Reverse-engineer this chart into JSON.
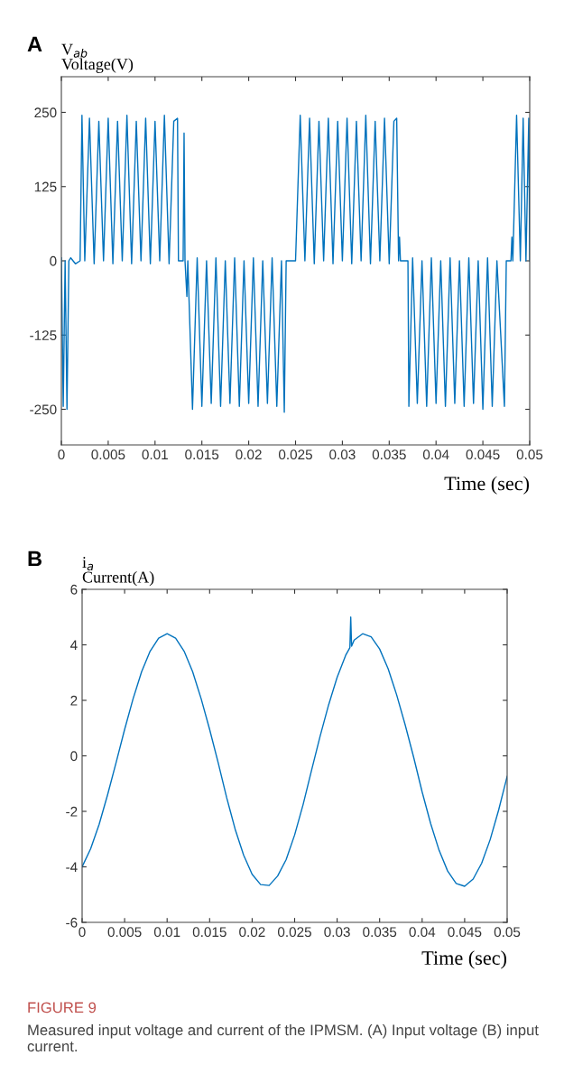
{
  "chart_data": [
    {
      "type": "line",
      "title": "A",
      "ylabel": "V$_{ab}$\nVoltage(V)",
      "xlabel": "Time (sec)",
      "xlim": [
        0,
        0.05
      ],
      "xticks": [
        0,
        0.005,
        0.01,
        0.015,
        0.02,
        0.025,
        0.03,
        0.035,
        0.04,
        0.045,
        0.05
      ],
      "ylim": [
        -310,
        310
      ],
      "yticks": [
        -250,
        -125,
        0,
        125,
        250
      ],
      "grid": false,
      "legend": false,
      "marker": "none",
      "line_style": "solid",
      "series": [
        {
          "color": "#0072bd",
          "x": [
            0,
            0.0002,
            0.0004,
            0.0006,
            0.0008,
            0.001,
            0.0015,
            0.002,
            0.0022,
            0.0025,
            0.003,
            0.0035,
            0.004,
            0.0045,
            0.005,
            0.0055,
            0.006,
            0.0065,
            0.007,
            0.0075,
            0.008,
            0.0085,
            0.009,
            0.0095,
            0.01,
            0.0105,
            0.011,
            0.0115,
            0.012,
            0.0124,
            0.0125,
            0.013,
            0.0131,
            0.0132,
            0.0134,
            0.0135,
            0.014,
            0.0145,
            0.015,
            0.0155,
            0.016,
            0.0165,
            0.017,
            0.0175,
            0.018,
            0.0185,
            0.019,
            0.0195,
            0.02,
            0.0205,
            0.021,
            0.0215,
            0.022,
            0.0225,
            0.023,
            0.0235,
            0.0238,
            0.024,
            0.025,
            0.0255,
            0.026,
            0.0265,
            0.027,
            0.0275,
            0.028,
            0.0285,
            0.029,
            0.0295,
            0.03,
            0.0305,
            0.031,
            0.0315,
            0.032,
            0.0325,
            0.033,
            0.0335,
            0.034,
            0.0345,
            0.035,
            0.0355,
            0.0358,
            0.036,
            0.0361,
            0.0362,
            0.037,
            0.0371,
            0.0375,
            0.038,
            0.0385,
            0.039,
            0.0395,
            0.04,
            0.0405,
            0.041,
            0.0415,
            0.042,
            0.0425,
            0.043,
            0.0435,
            0.044,
            0.0445,
            0.045,
            0.0455,
            0.046,
            0.0465,
            0.0473,
            0.0475,
            0.048,
            0.0481,
            0.0482,
            0.0486,
            0.049,
            0.0493,
            0.0496,
            0.0499,
            0.05
          ],
          "values": [
            5,
            -245,
            0,
            -250,
            0,
            5,
            -5,
            0,
            245,
            0,
            240,
            -5,
            235,
            0,
            240,
            -5,
            235,
            0,
            245,
            -5,
            235,
            0,
            240,
            -5,
            235,
            0,
            245,
            -5,
            235,
            240,
            0,
            0,
            215,
            0,
            -60,
            0,
            -250,
            5,
            -245,
            0,
            -240,
            5,
            -245,
            0,
            -240,
            5,
            -245,
            0,
            -240,
            5,
            -245,
            0,
            -240,
            5,
            -245,
            0,
            -255,
            0,
            0,
            245,
            0,
            240,
            -5,
            235,
            0,
            240,
            -5,
            235,
            0,
            240,
            -5,
            235,
            0,
            245,
            -5,
            235,
            0,
            240,
            -5,
            235,
            240,
            0,
            40,
            0,
            0,
            -245,
            5,
            -240,
            0,
            -245,
            5,
            -240,
            0,
            -245,
            5,
            -240,
            0,
            -245,
            5,
            -240,
            0,
            -250,
            5,
            -245,
            0,
            -245,
            0,
            0,
            40,
            0,
            245,
            0,
            240,
            0,
            240,
            0
          ]
        }
      ]
    },
    {
      "type": "line",
      "title": "B",
      "ylabel": "i$_{a}$\nCurrent(A)",
      "xlabel": "Time (sec)",
      "xlim": [
        0,
        0.05
      ],
      "xticks": [
        0,
        0.005,
        0.01,
        0.015,
        0.02,
        0.025,
        0.03,
        0.035,
        0.04,
        0.045,
        0.05
      ],
      "ylim": [
        -6,
        6
      ],
      "yticks": [
        -6,
        -4,
        -2,
        0,
        2,
        4,
        6
      ],
      "grid": false,
      "legend": false,
      "marker": "none",
      "line_style": "solid",
      "annotations": [
        "FIGURE 9",
        "Measured input voltage and current of the IPMSM. (A) Input voltage (B) input current."
      ],
      "series": [
        {
          "color": "#0072bd",
          "x": [
            0,
            0.001,
            0.002,
            0.003,
            0.004,
            0.005,
            0.006,
            0.007,
            0.008,
            0.009,
            0.01,
            0.011,
            0.012,
            0.013,
            0.014,
            0.015,
            0.016,
            0.017,
            0.018,
            0.019,
            0.02,
            0.021,
            0.022,
            0.023,
            0.024,
            0.025,
            0.026,
            0.027,
            0.028,
            0.029,
            0.03,
            0.031,
            0.0315,
            0.0316,
            0.0317,
            0.032,
            0.033,
            0.034,
            0.035,
            0.036,
            0.037,
            0.038,
            0.039,
            0.04,
            0.041,
            0.042,
            0.043,
            0.044,
            0.045,
            0.046,
            0.047,
            0.048,
            0.049,
            0.05
          ],
          "values": [
            -4.0,
            -3.35,
            -2.47,
            -1.4,
            -0.24,
            0.95,
            2.06,
            3.03,
            3.77,
            4.24,
            4.4,
            4.24,
            3.77,
            3.03,
            2.06,
            0.95,
            -0.24,
            -1.5,
            -2.64,
            -3.58,
            -4.27,
            -4.64,
            -4.67,
            -4.33,
            -3.74,
            -2.85,
            -1.75,
            -0.51,
            0.71,
            1.84,
            2.83,
            3.62,
            3.9,
            5.0,
            3.95,
            4.17,
            4.4,
            4.29,
            3.85,
            3.14,
            2.2,
            1.12,
            -0.05,
            -1.3,
            -2.44,
            -3.41,
            -4.15,
            -4.6,
            -4.7,
            -4.44,
            -3.87,
            -3.02,
            -1.95,
            -0.74
          ]
        }
      ]
    }
  ]
}
